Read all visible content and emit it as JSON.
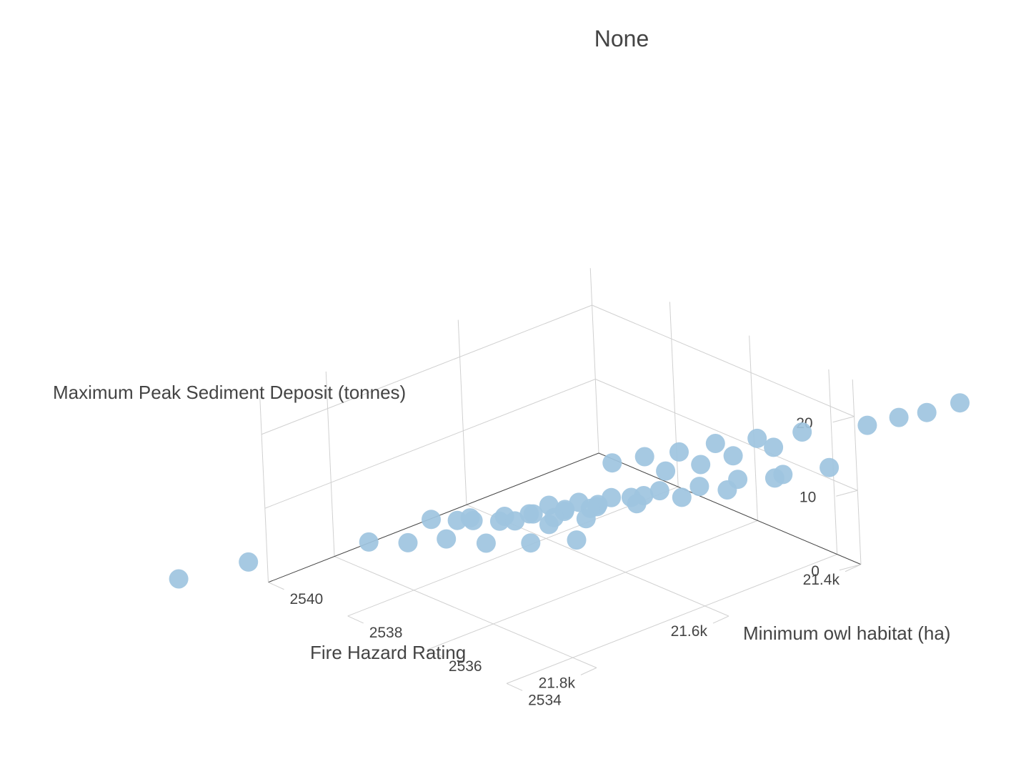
{
  "chart_data": {
    "type": "scatter3d",
    "title": "None",
    "x_axis": {
      "label": "Fire Hazard Rating",
      "ticks": [
        "21.4k",
        "21.6k",
        "21.8k"
      ],
      "tick_values": [
        21400,
        21600,
        21800
      ]
    },
    "y_axis": {
      "label": "Minimum owl habitat (ha)",
      "ticks": [
        "2534",
        "2536",
        "2538",
        "2540"
      ],
      "tick_values": [
        2534,
        2536,
        2538,
        2540
      ]
    },
    "z_axis": {
      "label": "Maximum Peak Sediment Deposit (tonnes)",
      "ticks": [
        "0",
        "10",
        "20"
      ],
      "tick_values": [
        0,
        10,
        20
      ]
    },
    "marker_color": "#9ec4e0",
    "grid_color": "#d0d0d0",
    "points": [
      {
        "x": 21352,
        "y": 2531.5,
        "z": 24.5
      },
      {
        "x": 21396,
        "y": 2531.6,
        "z": 24.5
      },
      {
        "x": 21468,
        "y": 2531.9,
        "z": 24.6
      },
      {
        "x": 21580,
        "y": 2532.4,
        "z": 24.4
      },
      {
        "x": 21629,
        "y": 2532.6,
        "z": 24.5
      },
      {
        "x": 21672,
        "y": 2532.7,
        "z": 24.6
      },
      {
        "x": 21713,
        "y": 2532.9,
        "z": 24.7
      },
      {
        "x": 21380,
        "y": 2532.6,
        "z": 21.0
      },
      {
        "x": 21490,
        "y": 2533.2,
        "z": 21.5
      },
      {
        "x": 21540,
        "y": 2533.5,
        "z": 21.7
      },
      {
        "x": 21585,
        "y": 2533.8,
        "z": 21.9
      },
      {
        "x": 21628,
        "y": 2534.0,
        "z": 21.8
      },
      {
        "x": 21668,
        "y": 2534.2,
        "z": 22.1
      },
      {
        "x": 21705,
        "y": 2534.4,
        "z": 22.1
      },
      {
        "x": 21400,
        "y": 2534.1,
        "z": 11.5
      },
      {
        "x": 21452,
        "y": 2534.4,
        "z": 11.7
      },
      {
        "x": 21502,
        "y": 2534.7,
        "z": 12.1
      },
      {
        "x": 21548,
        "y": 2534.9,
        "z": 12.3
      },
      {
        "x": 21590,
        "y": 2535.2,
        "z": 12.5
      },
      {
        "x": 21645,
        "y": 2535.5,
        "z": 12.8
      },
      {
        "x": 21682,
        "y": 2535.7,
        "z": 13.0
      },
      {
        "x": 21715,
        "y": 2535.9,
        "z": 13.3
      },
      {
        "x": 21598,
        "y": 2535.8,
        "z": 10.5
      },
      {
        "x": 21638,
        "y": 2536.0,
        "z": 10.2
      },
      {
        "x": 21675,
        "y": 2536.2,
        "z": 10.4
      },
      {
        "x": 21710,
        "y": 2536.5,
        "z": 10.6
      },
      {
        "x": 21743,
        "y": 2536.7,
        "z": 10.3
      },
      {
        "x": 21418,
        "y": 2535.2,
        "z": 8.2
      },
      {
        "x": 21472,
        "y": 2535.5,
        "z": 7.8
      },
      {
        "x": 21562,
        "y": 2536.1,
        "z": 8.8
      },
      {
        "x": 21613,
        "y": 2536.4,
        "z": 8.7
      },
      {
        "x": 21651,
        "y": 2536.6,
        "z": 8.9
      },
      {
        "x": 21687,
        "y": 2536.8,
        "z": 9.1
      },
      {
        "x": 21718,
        "y": 2537.0,
        "z": 9.4
      },
      {
        "x": 21752,
        "y": 2537.3,
        "z": 9.7
      },
      {
        "x": 21748,
        "y": 2537.7,
        "z": 8.3
      },
      {
        "x": 21488,
        "y": 2536.4,
        "z": 5.3
      },
      {
        "x": 21538,
        "y": 2536.7,
        "z": 5.5
      },
      {
        "x": 21590,
        "y": 2537.0,
        "z": 6.0
      },
      {
        "x": 21633,
        "y": 2537.2,
        "z": 5.8
      },
      {
        "x": 21674,
        "y": 2537.5,
        "z": 6.1
      },
      {
        "x": 21713,
        "y": 2537.9,
        "z": 6.6
      },
      {
        "x": 21752,
        "y": 2538.3,
        "z": 7.2
      },
      {
        "x": 21568,
        "y": 2537.5,
        "z": 2.7
      },
      {
        "x": 21612,
        "y": 2537.7,
        "z": 3.0
      },
      {
        "x": 21725,
        "y": 2538.4,
        "z": 3.4
      },
      {
        "x": 21765,
        "y": 2538.7,
        "z": 3.6
      },
      {
        "x": 21800,
        "y": 2539.1,
        "z": 4.0
      },
      {
        "x": 21672,
        "y": 2538.3,
        "z": 1.2
      },
      {
        "x": 21623,
        "y": 2538.0,
        "z": 0.2
      },
      {
        "x": 21572,
        "y": 2537.7,
        "z": -0.5
      },
      {
        "x": 21905,
        "y": 2540.4,
        "z": 2.0
      },
      {
        "x": 21975,
        "y": 2541.0,
        "z": 0.8
      }
    ]
  }
}
